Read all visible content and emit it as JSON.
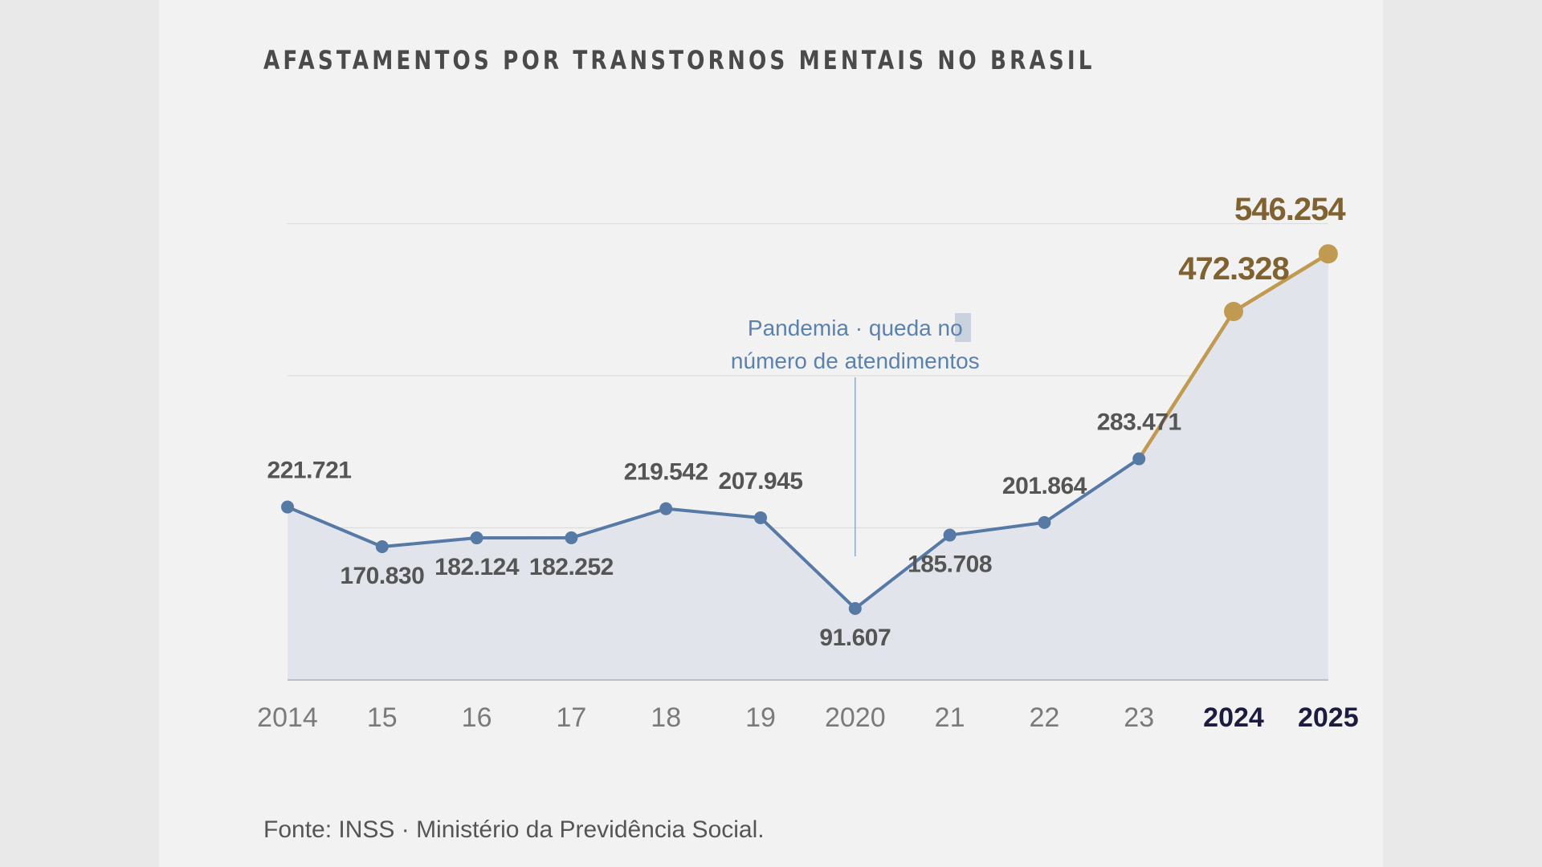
{
  "chart_data": {
    "type": "line",
    "title": "AFASTAMENTOS POR TRANSTORNOS MENTAIS NO BRASIL",
    "categories": [
      "2014",
      "15",
      "16",
      "17",
      "18",
      "19",
      "2020",
      "21",
      "22",
      "23",
      "2024",
      "2025"
    ],
    "values": [
      221721,
      170830,
      182124,
      182252,
      219542,
      207945,
      91607,
      185708,
      201864,
      283471,
      472328,
      546254
    ],
    "value_labels": [
      "221.721",
      "170.830",
      "182.124",
      "182.252",
      "219.542",
      "207.945",
      "91.607",
      "185.708",
      "201.864",
      "283.471",
      "472.328",
      "546.254"
    ],
    "highlight_categories": [
      "2024",
      "2025"
    ],
    "ylim": [
      0,
      600000
    ],
    "grid": true,
    "annotation": {
      "category": "2020",
      "lines": [
        "Pandemia · queda no",
        "número de atendimentos"
      ]
    },
    "source": "Fonte: INSS · Ministério da Previdência Social.",
    "colors": {
      "line": "#5679a6",
      "highlight": "#bf9a50",
      "highlight_label": "#7f6230",
      "area": "#e1e5eb",
      "label": "#555555",
      "tick": "#7a7a7a",
      "tick_highlight": "#1c1c40"
    }
  }
}
